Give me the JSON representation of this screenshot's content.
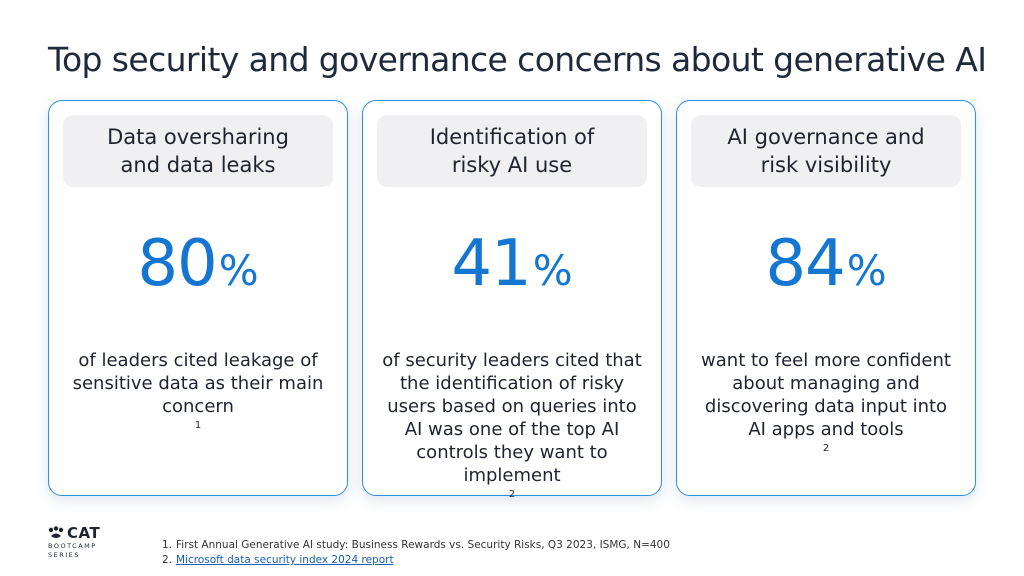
{
  "title": "Top security and governance concerns about generative AI",
  "cards": [
    {
      "header_lines": [
        "Data oversharing",
        "and data leaks"
      ],
      "stat_value": "80",
      "stat_unit": "%",
      "desc_lines": [
        "of leaders cited leakage of",
        "sensitive data as their main",
        "concern"
      ],
      "footnote_ref": "1"
    },
    {
      "header_lines": [
        "Identification of",
        "risky AI use"
      ],
      "stat_value": "41",
      "stat_unit": "%",
      "desc_lines": [
        "of security leaders cited that",
        "the identification of risky",
        "users based on queries into",
        "AI was one of the top AI",
        "controls they want to",
        "implement"
      ],
      "footnote_ref": "2"
    },
    {
      "header_lines": [
        "AI governance and",
        "risk visibility"
      ],
      "stat_value": "84",
      "stat_unit": "%",
      "desc_lines": [
        "want to feel more confident",
        "about managing and",
        "discovering data input into",
        "AI apps and tools"
      ],
      "footnote_ref": "2"
    }
  ],
  "logo": {
    "name": "CAT",
    "subtitle_lines": [
      "BOOTCAMP",
      "SERIES"
    ]
  },
  "footnotes": [
    {
      "number": "1.",
      "text": "First Annual Generative AI study: Business Rewards vs. Security Risks, Q3 2023, ISMG, N=400"
    },
    {
      "number": "2.",
      "text": "Microsoft data security index 2024 report"
    }
  ],
  "colors": {
    "accent": "#1476d1",
    "card_border": "#2f8fe0",
    "header_bg": "#f0f0f2",
    "link": "#1a5fb4"
  }
}
